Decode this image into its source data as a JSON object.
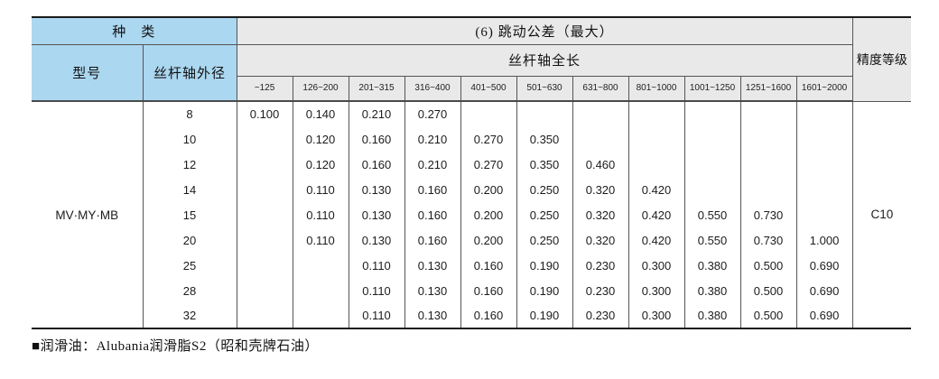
{
  "colors": {
    "header_blue": "#abd7f0",
    "header_gray": "#e9e9e9",
    "grid_line": "#555555",
    "rule_dark": "#1a1a1a"
  },
  "table": {
    "header": {
      "category_label": "种　类",
      "tolerance_title": "(6) 跳动公差（最大）",
      "total_length_label": "丝杆轴全长",
      "accuracy_label": "精度等级",
      "model_label": "型号",
      "shaft_od_label": "丝杆轴外径",
      "length_ranges": [
        "~125",
        "126~200",
        "201~315",
        "316~400",
        "401~500",
        "501~630",
        "631~800",
        "801~1000",
        "1001~1250",
        "1251~1600",
        "1601~2000"
      ]
    },
    "model": "MV·MY·MB",
    "accuracy_grade": "C10",
    "rows": [
      {
        "diameter": "8",
        "values": [
          "0.100",
          "0.140",
          "0.210",
          "0.270",
          "",
          "",
          "",
          "",
          "",
          "",
          ""
        ]
      },
      {
        "diameter": "10",
        "values": [
          "",
          "0.120",
          "0.160",
          "0.210",
          "0.270",
          "0.350",
          "",
          "",
          "",
          "",
          ""
        ]
      },
      {
        "diameter": "12",
        "values": [
          "",
          "0.120",
          "0.160",
          "0.210",
          "0.270",
          "0.350",
          "0.460",
          "",
          "",
          "",
          ""
        ]
      },
      {
        "diameter": "14",
        "values": [
          "",
          "0.110",
          "0.130",
          "0.160",
          "0.200",
          "0.250",
          "0.320",
          "0.420",
          "",
          "",
          ""
        ]
      },
      {
        "diameter": "15",
        "values": [
          "",
          "0.110",
          "0.130",
          "0.160",
          "0.200",
          "0.250",
          "0.320",
          "0.420",
          "0.550",
          "0.730",
          ""
        ]
      },
      {
        "diameter": "20",
        "values": [
          "",
          "0.110",
          "0.130",
          "0.160",
          "0.200",
          "0.250",
          "0.320",
          "0.420",
          "0.550",
          "0.730",
          "1.000"
        ]
      },
      {
        "diameter": "25",
        "values": [
          "",
          "",
          "0.110",
          "0.130",
          "0.160",
          "0.190",
          "0.230",
          "0.300",
          "0.380",
          "0.500",
          "0.690"
        ]
      },
      {
        "diameter": "28",
        "values": [
          "",
          "",
          "0.110",
          "0.130",
          "0.160",
          "0.190",
          "0.230",
          "0.300",
          "0.380",
          "0.500",
          "0.690"
        ]
      },
      {
        "diameter": "32",
        "values": [
          "",
          "",
          "0.110",
          "0.130",
          "0.160",
          "0.190",
          "0.230",
          "0.300",
          "0.380",
          "0.500",
          "0.690"
        ]
      }
    ]
  },
  "footer": {
    "bullet": "■",
    "note": "润滑油：Alubania润滑脂S2（昭和壳牌石油）"
  }
}
